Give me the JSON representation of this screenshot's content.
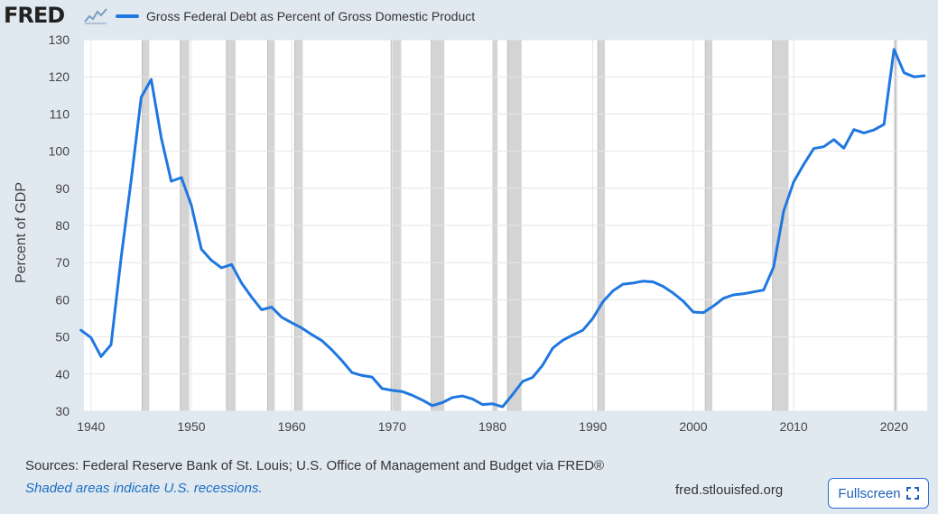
{
  "header": {
    "logo_text": "FRED",
    "logo_icon": "chart-line-icon"
  },
  "footer": {
    "sources": "Sources: Federal Reserve Bank of St. Louis; U.S. Office of Management and Budget via FRED®",
    "recession_note": "Shaded areas indicate U.S. recessions.",
    "site": "fred.stlouisfed.org",
    "fullscreen_label": "Fullscreen",
    "fullscreen_icon": "expand-icon"
  },
  "colors": {
    "series": "#1f77e0",
    "recession": "#d4d4d4",
    "background": "#e1e9f0",
    "plot": "#ffffff"
  },
  "chart_data": {
    "type": "line",
    "ylabel": "Percent of GDP",
    "xlim": [
      1939.3,
      2023.3
    ],
    "ylim": [
      30,
      130
    ],
    "y_ticks": [
      30,
      40,
      50,
      60,
      70,
      80,
      90,
      100,
      110,
      120,
      130
    ],
    "x_ticks": [
      1940,
      1950,
      1960,
      1970,
      1980,
      1990,
      2000,
      2010,
      2020
    ],
    "grid": true,
    "legend_position": "top-left",
    "series": [
      {
        "name": "Gross Federal Debt as Percent of Gross Domestic Product",
        "x": [
          1939,
          1940,
          1941,
          1942,
          1943,
          1944,
          1945,
          1946,
          1947,
          1948,
          1949,
          1950,
          1951,
          1952,
          1953,
          1954,
          1955,
          1956,
          1957,
          1958,
          1959,
          1960,
          1961,
          1962,
          1963,
          1964,
          1965,
          1966,
          1967,
          1968,
          1969,
          1970,
          1971,
          1972,
          1973,
          1974,
          1975,
          1976,
          1977,
          1978,
          1979,
          1980,
          1981,
          1982,
          1983,
          1984,
          1985,
          1986,
          1987,
          1988,
          1989,
          1990,
          1991,
          1992,
          1993,
          1994,
          1995,
          1996,
          1997,
          1998,
          1999,
          2000,
          2001,
          2002,
          2003,
          2004,
          2005,
          2006,
          2007,
          2008,
          2009,
          2010,
          2011,
          2012,
          2013,
          2014,
          2015,
          2016,
          2017,
          2018,
          2019,
          2020,
          2021,
          2022,
          2023
        ],
        "values": [
          51.8,
          49.8,
          44.7,
          47.9,
          71.2,
          92.2,
          114.5,
          119.3,
          103.6,
          91.9,
          92.9,
          85.4,
          73.6,
          70.6,
          68.6,
          69.5,
          64.5,
          60.7,
          57.3,
          58.0,
          55.3,
          53.8,
          52.4,
          50.6,
          49.0,
          46.5,
          43.6,
          40.4,
          39.6,
          39.2,
          36.1,
          35.6,
          35.3,
          34.3,
          33.0,
          31.5,
          32.3,
          33.7,
          34.1,
          33.3,
          31.8,
          32.0,
          31.2,
          34.5,
          38.0,
          39.1,
          42.4,
          47.0,
          49.1,
          50.5,
          51.8,
          55.0,
          59.5,
          62.4,
          64.2,
          64.5,
          65.0,
          64.8,
          63.6,
          61.8,
          59.6,
          56.7,
          56.5,
          58.3,
          60.4,
          61.3,
          61.6,
          62.1,
          62.6,
          68.8,
          83.8,
          91.7,
          96.4,
          100.7,
          101.2,
          103.1,
          100.8,
          105.8,
          104.9,
          105.7,
          107.2,
          127.4,
          121.1,
          120.0,
          120.3
        ]
      }
    ],
    "recessions": [
      [
        1945.1,
        1945.8
      ],
      [
        1948.9,
        1949.8
      ],
      [
        1953.5,
        1954.4
      ],
      [
        1957.6,
        1958.3
      ],
      [
        1960.3,
        1961.1
      ],
      [
        1969.9,
        1970.9
      ],
      [
        1973.9,
        1975.2
      ],
      [
        1980.0,
        1980.5
      ],
      [
        1981.5,
        1982.9
      ],
      [
        1990.5,
        1991.2
      ],
      [
        2001.2,
        2001.9
      ],
      [
        2007.9,
        2009.5
      ],
      [
        2020.1,
        2020.3
      ]
    ]
  }
}
